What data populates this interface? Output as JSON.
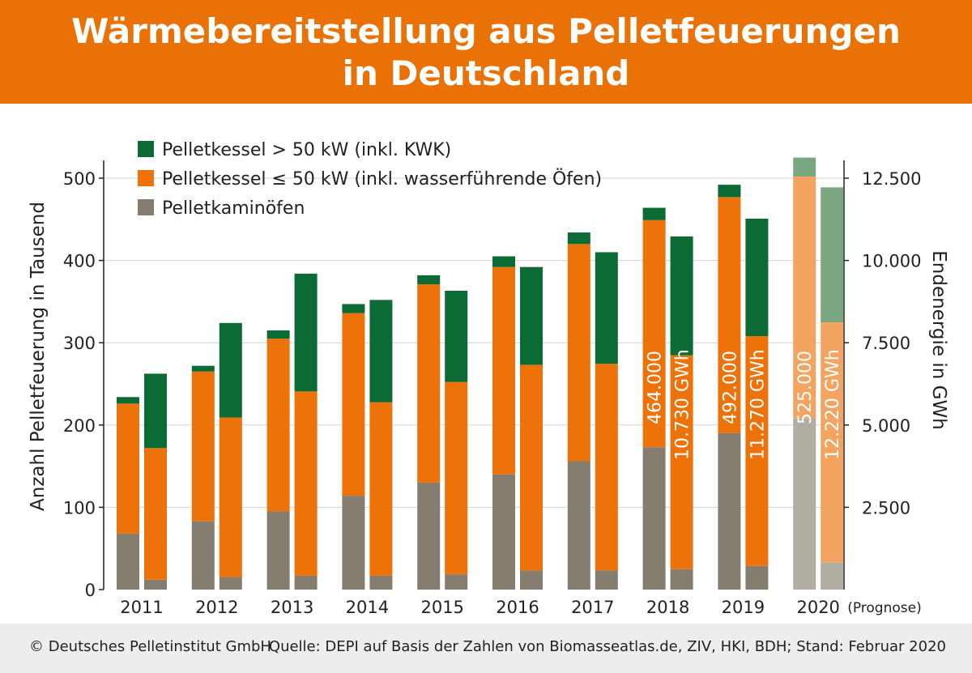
{
  "header": {
    "title_line1": "Wärmebereitstellung aus Pelletfeuerungen",
    "title_line2": "in Deutschland"
  },
  "footer": {
    "copyright": "© Deutsches Pelletinstitut GmbH",
    "source": "Quelle: DEPI auf Basis der Zahlen von Biomasseatlas.de, ZIV, HKI, BDH; Stand: Februar 2020"
  },
  "colors": {
    "header_orange": "#ea7105",
    "green": "#0c6a34",
    "orange": "#ec7209",
    "gray": "#857e70",
    "green_light": "#7aa77f",
    "orange_light": "#f3a460",
    "gray_light": "#b1ada2"
  },
  "chart_data": {
    "type": "bar",
    "stacked": true,
    "categories": [
      "2011",
      "2012",
      "2013",
      "2014",
      "2015",
      "2016",
      "2017",
      "2018",
      "2019",
      "2020"
    ],
    "forecast_category": "2020",
    "forecast_label": "(Prognose)",
    "ylabel_left": "Anzahl Pelletfeuerung in Tausend",
    "ylabel_right": "Endenergie in GWh",
    "ylim_left": [
      0,
      500
    ],
    "ylim_right": [
      0,
      12500
    ],
    "yticks_left": [
      "0",
      "100",
      "200",
      "300",
      "400",
      "500"
    ],
    "yticks_right": [
      "2.500",
      "5.000",
      "7.500",
      "10.000",
      "12.500"
    ],
    "grid": true,
    "legend": {
      "placement": "top-left",
      "entries": [
        {
          "label": "Pelletkessel > 50 kW (inkl. KWK)",
          "color": "#0c6a34"
        },
        {
          "label": "Pelletkessel  ≤ 50 kW (inkl. wasserführende Öfen)",
          "color": "#ec7209"
        },
        {
          "label": "Pelletkaminöfen",
          "color": "#857e70"
        }
      ]
    },
    "count_series": [
      {
        "name": "Pelletkaminöfen",
        "values": [
          68,
          83,
          95,
          114,
          130,
          140,
          156,
          173,
          190,
          208
        ]
      },
      {
        "name": "Pelletkessel ≤ 50 kW (inkl. wasserführende Öfen)",
        "values": [
          158,
          182,
          210,
          222,
          241,
          252,
          264,
          276,
          287,
          294
        ]
      },
      {
        "name": "Pelletkessel > 50 kW (inkl. KWK)",
        "values": [
          8,
          7,
          10,
          11,
          11,
          13,
          14,
          15,
          15,
          23
        ]
      }
    ],
    "energy_series_gwh": [
      {
        "name": "Pelletkaminöfen",
        "values": [
          300,
          380,
          420,
          420,
          460,
          580,
          580,
          620,
          720,
          820
        ]
      },
      {
        "name": "Pelletkessel ≤ 50 kW (inkl. wasserführende Öfen)",
        "values": [
          4000,
          4850,
          5600,
          5270,
          5850,
          6250,
          6280,
          6500,
          6980,
          7300
        ]
      },
      {
        "name": "Pelletkessel > 50 kW (inkl. KWK)",
        "values": [
          2260,
          2870,
          3580,
          3110,
          2770,
          2970,
          3390,
          3610,
          3570,
          4100
        ]
      }
    ],
    "annotations": [
      {
        "category": "2018",
        "count_total": "464.000",
        "energy_total": "10.730 GWh"
      },
      {
        "category": "2019",
        "count_total": "492.000",
        "energy_total": "11.270 GWh"
      },
      {
        "category": "2020",
        "count_total": "525.000",
        "energy_total": "12.220 GWh"
      }
    ]
  }
}
